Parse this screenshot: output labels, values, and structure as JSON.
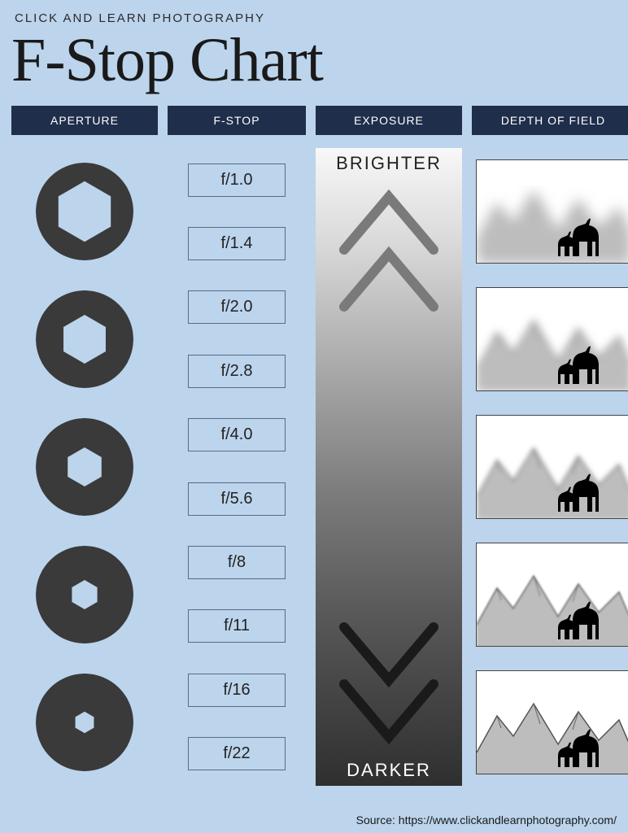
{
  "subtitle": "CLICK AND LEARN PHOTOGRAPHY",
  "title": "F-Stop Chart",
  "headers": {
    "aperture": "APERTURE",
    "fstop": "F-STOP",
    "exposure": "EXPOSURE",
    "dof": "DEPTH OF FIELD"
  },
  "fstops": [
    "f/1.0",
    "f/1.4",
    "f/2.0",
    "f/2.8",
    "f/4.0",
    "f/5.6",
    "f/8",
    "f/11",
    "f/16",
    "f/22"
  ],
  "aperture_openings": [
    0.62,
    0.5,
    0.4,
    0.3,
    0.22
  ],
  "aperture_icon_color": "#3a3a3a",
  "exposure": {
    "top_label": "BRIGHTER",
    "bottom_label": "DARKER",
    "gradient_stops": [
      "#f8f8f8",
      "#d9d9d9",
      "#a8a8a8",
      "#7a7a7a",
      "#555555",
      "#2f2f2f"
    ],
    "chevron_up_color": "#7a7a7a",
    "chevron_down_color": "#1a1a1a"
  },
  "dof_blur_levels": [
    8,
    5,
    3,
    1,
    0
  ],
  "header_bg": "#1f2e4a",
  "header_fg": "#ffffff",
  "page_bg": "#bcd4ec",
  "fstop_border": "#5a6a85",
  "source": "Source: https://www.clickandlearnphotography.com/"
}
